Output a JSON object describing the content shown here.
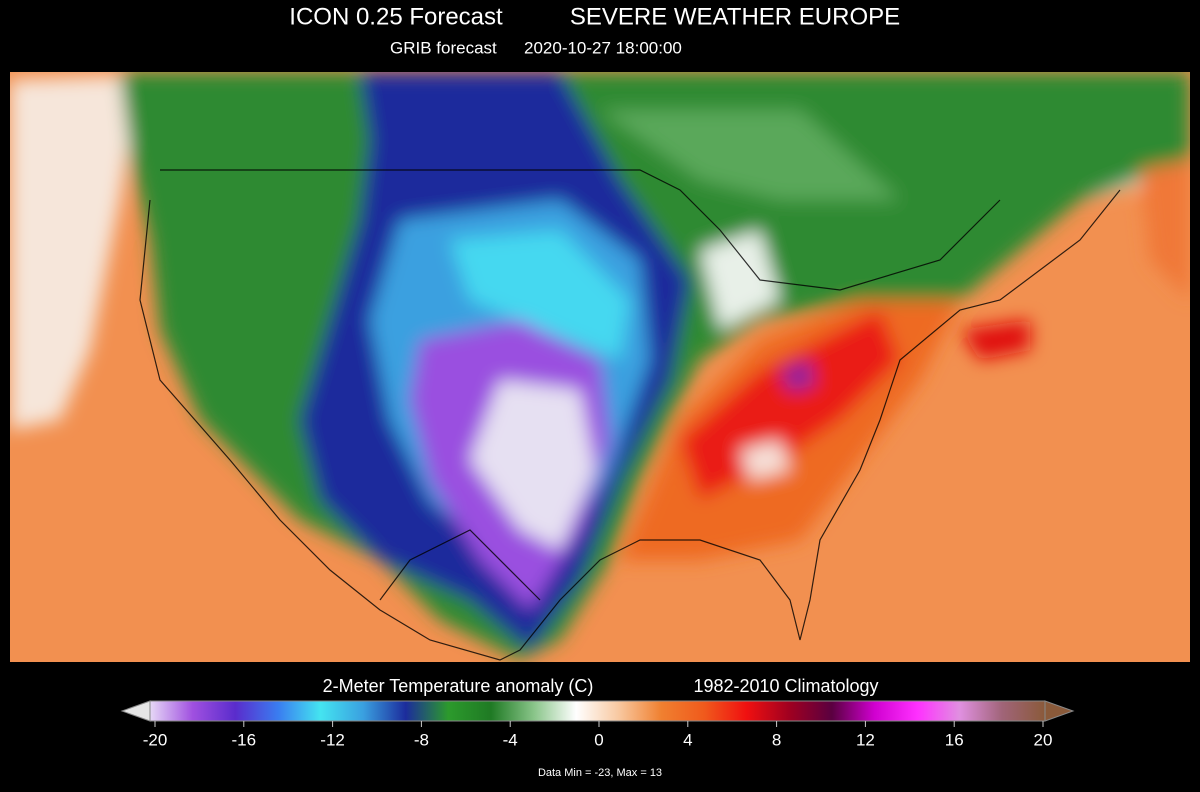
{
  "header": {
    "title": "ICON 0.25 Forecast",
    "brand": "SEVERE WEATHER EUROPE",
    "source": "GRIB forecast",
    "time": "2020-10-27 18:00:00"
  },
  "colorbar": {
    "label": "2-Meter Temperature anomaly (C)",
    "climatology": "1982-2010 Climatology",
    "lim": [
      -20,
      20
    ],
    "ticks": [
      -20,
      -16,
      -12,
      -8,
      -4,
      0,
      4,
      8,
      12,
      16,
      20
    ],
    "colors": [
      "#e6d8f6",
      "#a050e0",
      "#5a2ccc",
      "#3a7cf0",
      "#44e4f0",
      "#3aa0e0",
      "#1c2c9c",
      "#2c9a2c",
      "#1f7a24",
      "#88c488",
      "#ffffff",
      "#f8c8a0",
      "#f08030",
      "#f05a1c",
      "#f01010",
      "#a00020",
      "#5a0040",
      "#d000d0",
      "#ff30ff",
      "#e090e0",
      "#a06478",
      "#8a5a3a"
    ]
  },
  "footer": {
    "stats": "Data Min = -23, Max = 13"
  }
}
